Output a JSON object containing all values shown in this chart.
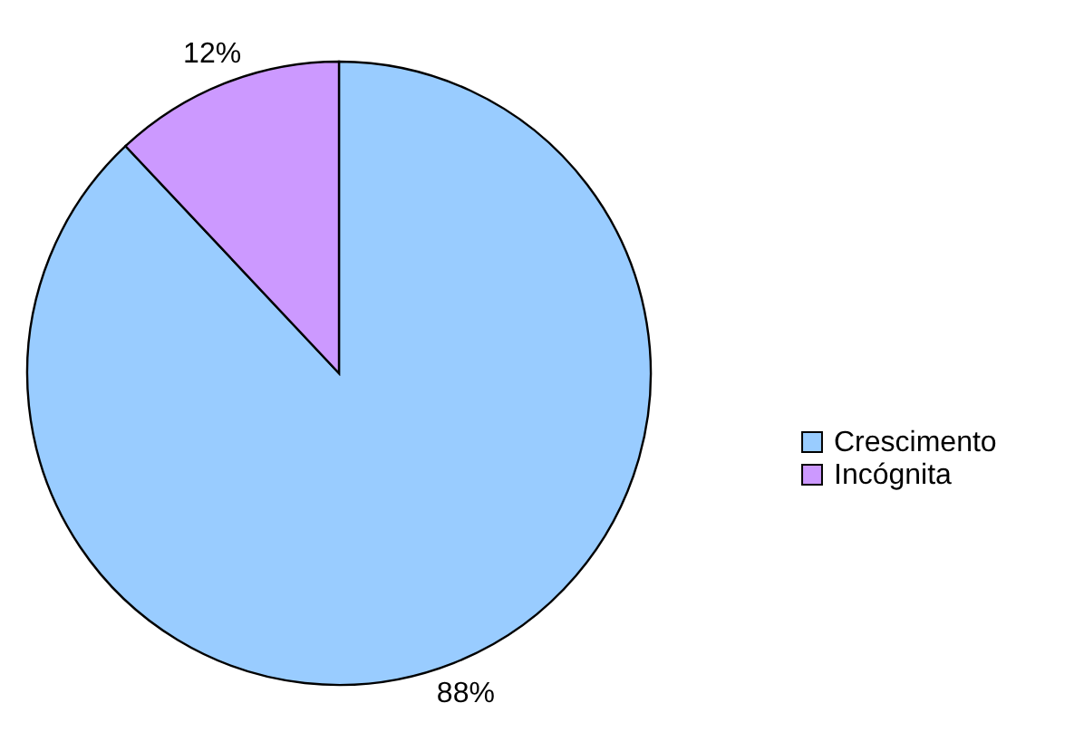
{
  "chart_data": {
    "type": "pie",
    "categories": [
      "Crescimento",
      "Incógnita"
    ],
    "values": [
      88,
      12
    ],
    "colors": [
      "#99ccff",
      "#cc99ff"
    ],
    "value_labels": [
      "88%",
      "12%"
    ],
    "legend": "right"
  }
}
